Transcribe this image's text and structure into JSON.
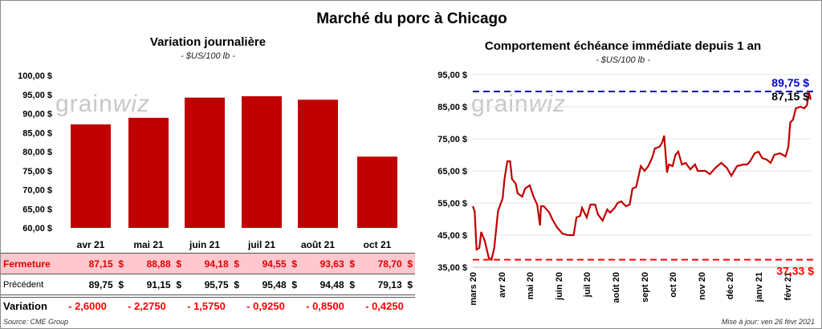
{
  "title": "Marché du porc à Chicago",
  "left": {
    "subtitle": "Variation journalière",
    "unit": "- $US/100 lb -",
    "table": {
      "row_labels": {
        "close": "Fermeture",
        "previous": "Précédent",
        "change": "Variation"
      },
      "close": [
        "87,15  $",
        "88,88  $",
        "94,18  $",
        "94,55  $",
        "93,63  $",
        "78,70  $"
      ],
      "previous": [
        "89,75  $",
        "91,15  $",
        "95,75  $",
        "95,48  $",
        "94,48  $",
        "79,13  $"
      ],
      "change": [
        "- 2,6000",
        "- 2,2750",
        "- 1,5750",
        "- 0,9250",
        "- 0,8500",
        "- 0,4250"
      ]
    },
    "source": "Source: CME Group"
  },
  "right": {
    "subtitle": "Comportement  échéance immédiate depuis 1 an",
    "unit": "- $US/100 lb -",
    "high_label": "89,75 $",
    "last_label": "87,15 $",
    "low_label": "37,33 $",
    "updated": "Mise à jour: ven 26 févr 2021"
  },
  "watermark": "grainwiz",
  "colors": {
    "bar": "#c00000",
    "line": "#c00000",
    "high": "#0000cc",
    "low": "#ff0000",
    "close_row_bg": "#ffc7ce",
    "close_row_text": "#e00000",
    "change_text": "#ff0000"
  },
  "chart_data": [
    {
      "type": "bar",
      "title": "Variation journalière",
      "subtitle": "- $US/100 lb -",
      "categories": [
        "avr 21",
        "mai 21",
        "juin 21",
        "juil 21",
        "août 21",
        "oct 21"
      ],
      "values": [
        87.15,
        88.88,
        94.18,
        94.55,
        93.63,
        78.7
      ],
      "ylim": [
        60,
        100
      ],
      "yticks": [
        60,
        65,
        70,
        75,
        80,
        85,
        90,
        95,
        100
      ],
      "ytick_labels": [
        "60,00 $",
        "65,00 $",
        "70,00 $",
        "75,00 $",
        "80,00 $",
        "85,00 $",
        "90,00 $",
        "95,00 $",
        "100,00 $"
      ],
      "grid": false
    },
    {
      "type": "line",
      "title": "Comportement  échéance immédiate depuis 1 an",
      "subtitle": "- $US/100 lb -",
      "xlim": [
        "2020-03-01",
        "2021-02-26"
      ],
      "ylim": [
        35,
        95
      ],
      "yticks": [
        35,
        45,
        55,
        65,
        75,
        85,
        95
      ],
      "ytick_labels": [
        "35,00 $",
        "45,00 $",
        "55,00 $",
        "65,00 $",
        "75,00 $",
        "85,00 $",
        "95,00 $"
      ],
      "xticks": [
        "2020-03-01",
        "2020-04-01",
        "2020-05-01",
        "2020-06-01",
        "2020-07-01",
        "2020-08-01",
        "2020-09-01",
        "2020-10-01",
        "2020-11-01",
        "2020-12-01",
        "2021-01-01",
        "2021-02-01"
      ],
      "xtick_labels": [
        "mars 20",
        "avr 20",
        "mai 20",
        "juin 20",
        "juil 20",
        "août 20",
        "sept 20",
        "oct 20",
        "nov 20",
        "déc 20",
        "janv 21",
        "févr 21"
      ],
      "grid": true,
      "reference_lines": [
        {
          "value": 89.75,
          "label": "89,75 $",
          "color": "#0000cc"
        },
        {
          "value": 37.33,
          "label": "37,33 $",
          "color": "#ff0000"
        }
      ],
      "series": [
        {
          "x": [
            "2020-03-01",
            "2020-03-03",
            "2020-03-05",
            "2020-03-08",
            "2020-03-10",
            "2020-03-14",
            "2020-03-18",
            "2020-03-21",
            "2020-03-24",
            "2020-03-28",
            "2020-04-02",
            "2020-04-04",
            "2020-04-07",
            "2020-04-10",
            "2020-04-12",
            "2020-04-16",
            "2020-04-18",
            "2020-04-23",
            "2020-04-26",
            "2020-05-01",
            "2020-05-05",
            "2020-05-09",
            "2020-05-12",
            "2020-05-13",
            "2020-05-16",
            "2020-05-22",
            "2020-05-25",
            "2020-05-30",
            "2020-06-05",
            "2020-06-11",
            "2020-06-17",
            "2020-06-20",
            "2020-06-24",
            "2020-06-26",
            "2020-07-01",
            "2020-07-05",
            "2020-07-10",
            "2020-07-13",
            "2020-07-18",
            "2020-07-23",
            "2020-07-26",
            "2020-07-31",
            "2020-08-03",
            "2020-08-07",
            "2020-08-12",
            "2020-08-16",
            "2020-08-19",
            "2020-08-23",
            "2020-08-28",
            "2020-09-01",
            "2020-09-05",
            "2020-09-09",
            "2020-09-12",
            "2020-09-17",
            "2020-09-20",
            "2020-09-22",
            "2020-09-25",
            "2020-09-27",
            "2020-10-01",
            "2020-10-04",
            "2020-10-07",
            "2020-10-11",
            "2020-10-15",
            "2020-10-20",
            "2020-10-25",
            "2020-10-28",
            "2020-11-05",
            "2020-11-10",
            "2020-11-16",
            "2020-11-22",
            "2020-11-28",
            "2020-12-03",
            "2020-12-09",
            "2020-12-16",
            "2020-12-20",
            "2020-12-23",
            "2020-12-28",
            "2021-01-01",
            "2021-01-05",
            "2021-01-10",
            "2021-01-14",
            "2021-01-18",
            "2021-01-24",
            "2021-01-30",
            "2021-02-02",
            "2021-02-04",
            "2021-02-07",
            "2021-02-10",
            "2021-02-15",
            "2021-02-19",
            "2021-02-22",
            "2021-02-24",
            "2021-02-26"
          ],
          "y": [
            54.0,
            52.5,
            40.5,
            41,
            46,
            43,
            38,
            37.33,
            41,
            52.5,
            56.5,
            62.5,
            68,
            68,
            62.5,
            61,
            58,
            57,
            59.5,
            60.5,
            57,
            54.5,
            48,
            54,
            54,
            52,
            50,
            47.5,
            45.5,
            45,
            45,
            50.5,
            51,
            53.5,
            50.5,
            54.5,
            54.5,
            51.5,
            49.5,
            53,
            52,
            53.5,
            55,
            55.5,
            54,
            54.5,
            59.5,
            60,
            66.5,
            65,
            66.5,
            69,
            72,
            72.5,
            74,
            76,
            64.5,
            67,
            66.5,
            70,
            71,
            67,
            67.5,
            65.5,
            67,
            65,
            65,
            64,
            66,
            67.5,
            66,
            63.5,
            66.5,
            67,
            67,
            68,
            70.5,
            71,
            69,
            68.5,
            67.5,
            70,
            70.5,
            69.5,
            72.5,
            80,
            81,
            84.5,
            85,
            84.5,
            85.5,
            89.5,
            87.15
          ]
        }
      ]
    }
  ]
}
